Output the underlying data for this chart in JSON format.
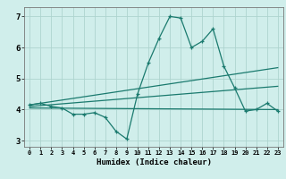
{
  "xlabel": "Humidex (Indice chaleur)",
  "x_values": [
    0,
    1,
    2,
    3,
    4,
    5,
    6,
    7,
    8,
    9,
    10,
    11,
    12,
    13,
    14,
    15,
    16,
    17,
    18,
    19,
    20,
    21,
    22,
    23
  ],
  "line1": [
    4.15,
    4.2,
    4.1,
    4.05,
    3.85,
    3.85,
    3.9,
    3.75,
    3.3,
    3.05,
    4.5,
    5.5,
    6.3,
    7.0,
    6.95,
    6.0,
    6.2,
    6.6,
    5.4,
    4.7,
    3.95,
    4.0,
    4.2,
    3.95
  ],
  "line2_x": [
    0,
    23
  ],
  "line2_y": [
    4.15,
    5.35
  ],
  "line3_x": [
    0,
    23
  ],
  "line3_y": [
    4.1,
    4.75
  ],
  "line4_x": [
    0,
    23
  ],
  "line4_y": [
    4.05,
    4.0
  ],
  "line_color": "#1a7a6e",
  "bg_color": "#d0eeeb",
  "grid_color": "#aed4cf",
  "ylim": [
    2.8,
    7.3
  ],
  "xlim": [
    -0.5,
    23.5
  ],
  "yticks": [
    3,
    4,
    5,
    6,
    7
  ],
  "xticks": [
    0,
    1,
    2,
    3,
    4,
    5,
    6,
    7,
    8,
    9,
    10,
    11,
    12,
    13,
    14,
    15,
    16,
    17,
    18,
    19,
    20,
    21,
    22,
    23
  ]
}
